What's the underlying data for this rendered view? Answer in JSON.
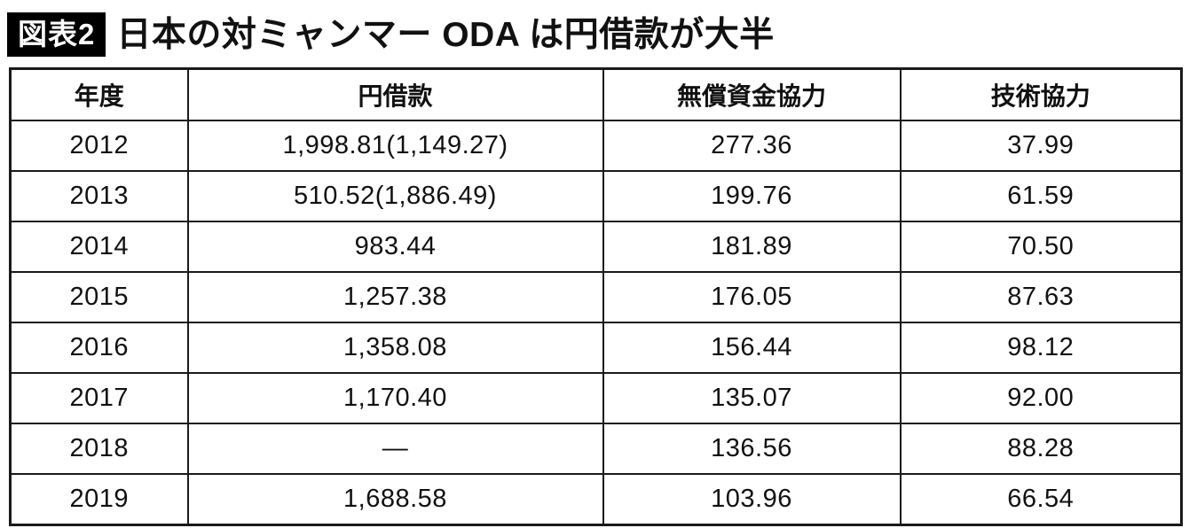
{
  "figure": {
    "label": "図表2",
    "title": "日本の対ミャンマー ODA は円借款が大半"
  },
  "chart_data": {
    "type": "table",
    "title": "日本の対ミャンマー ODA は円借款が大半",
    "figure_label": "図表2",
    "columns": [
      "年度",
      "円借款",
      "無償資金協力",
      "技術協力"
    ],
    "rows": [
      [
        "2012",
        "1,998.81(1,149.27)",
        "277.36",
        "37.99"
      ],
      [
        "2013",
        "510.52(1,886.49)",
        "199.76",
        "61.59"
      ],
      [
        "2014",
        "983.44",
        "181.89",
        "70.50"
      ],
      [
        "2015",
        "1,257.38",
        "176.05",
        "87.63"
      ],
      [
        "2016",
        "1,358.08",
        "156.44",
        "98.12"
      ],
      [
        "2017",
        "1,170.40",
        "135.07",
        "92.00"
      ],
      [
        "2018",
        "—",
        "136.56",
        "88.28"
      ],
      [
        "2019",
        "1,688.58",
        "103.96",
        "66.54"
      ]
    ]
  },
  "colors": {
    "text": "#111111",
    "border": "#1a1a1a",
    "label_background": "#000000",
    "label_text": "#ffffff",
    "page_background": "#ffffff"
  }
}
